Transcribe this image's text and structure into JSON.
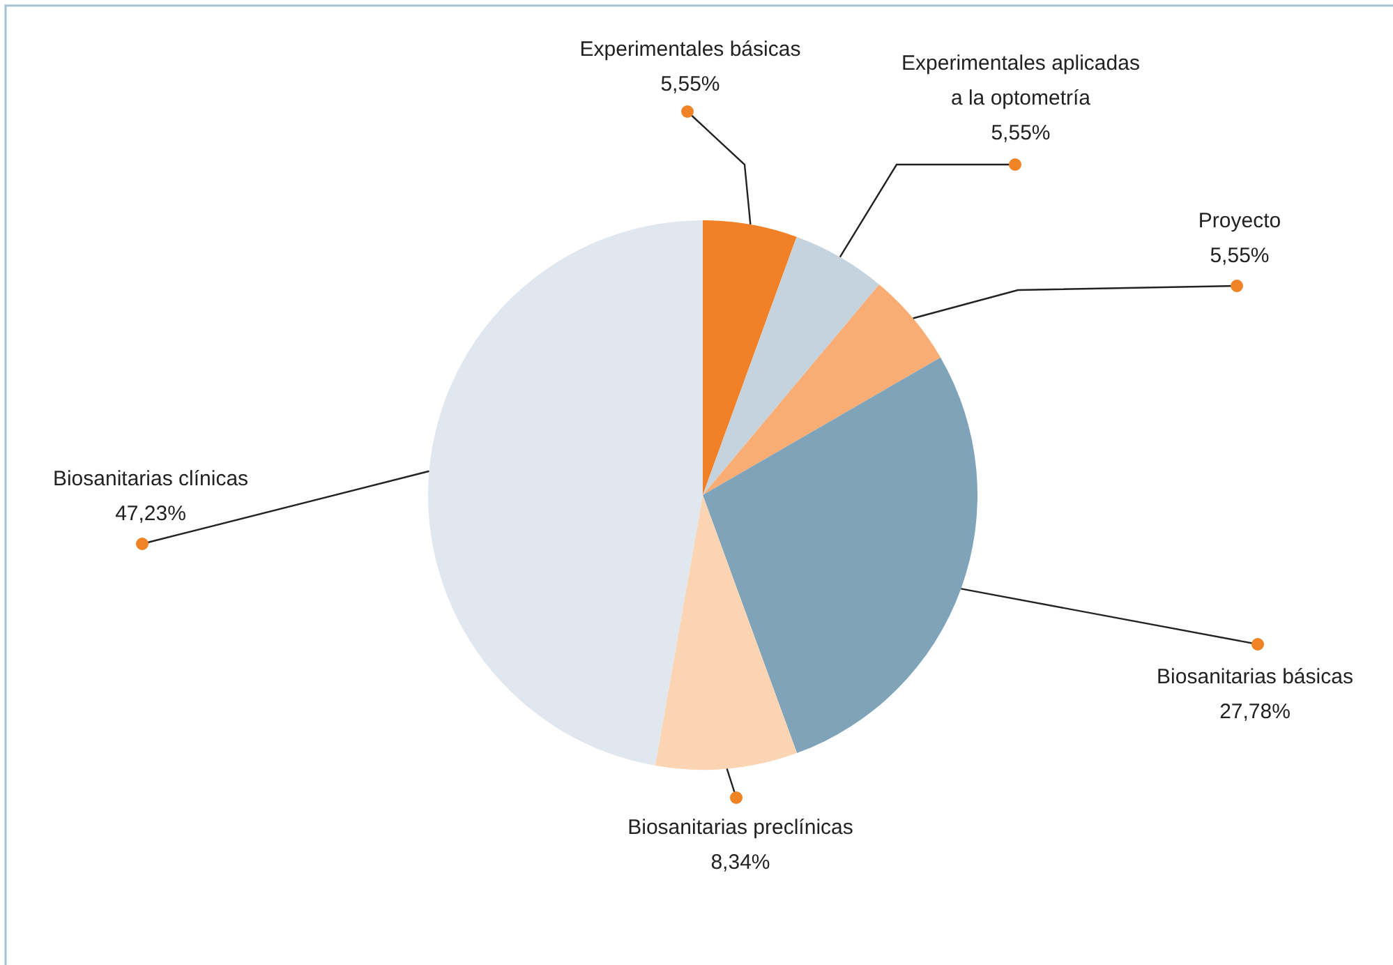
{
  "chart_data": {
    "type": "pie",
    "categories": [
      "Experimentales básicas",
      "Experimentales aplicadas a la optometría",
      "Proyecto",
      "Biosanitarias básicas",
      "Biosanitarias preclínicas",
      "Biosanitarias clínicas"
    ],
    "values": [
      5.55,
      5.55,
      5.55,
      27.78,
      8.34,
      47.23
    ],
    "value_labels": [
      "5,55%",
      "5,55%",
      "5,55%",
      "27,78%",
      "8,34%",
      "47,23%"
    ],
    "colors": [
      "#f28026",
      "#c5d3de",
      "#f9ad74",
      "#7fa3b9",
      "#fbd5b3",
      "#e0e7ee"
    ]
  }
}
